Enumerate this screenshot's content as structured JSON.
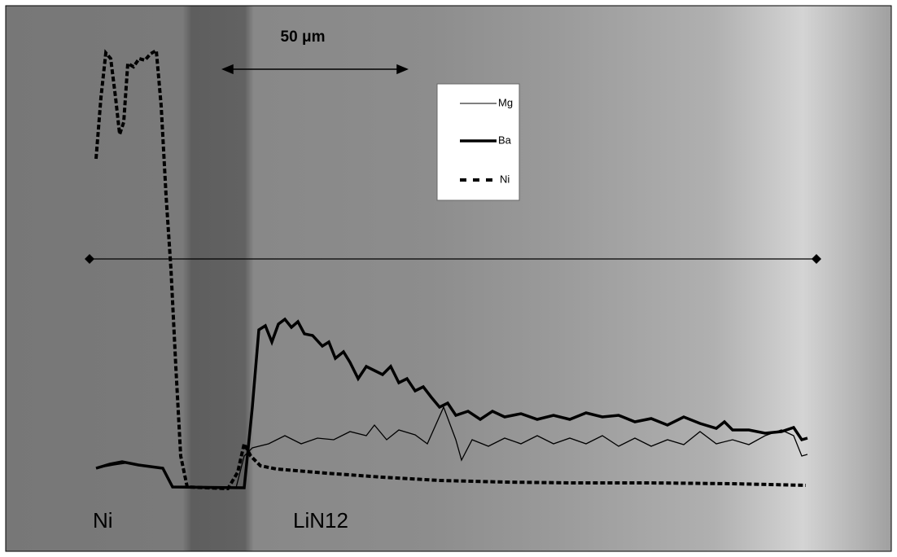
{
  "scale_bar": {
    "label": "50 μm"
  },
  "legend": {
    "items": [
      "Mg",
      "Ba",
      "Ni"
    ]
  },
  "regions": [
    "Ni",
    "LiN12"
  ]
}
